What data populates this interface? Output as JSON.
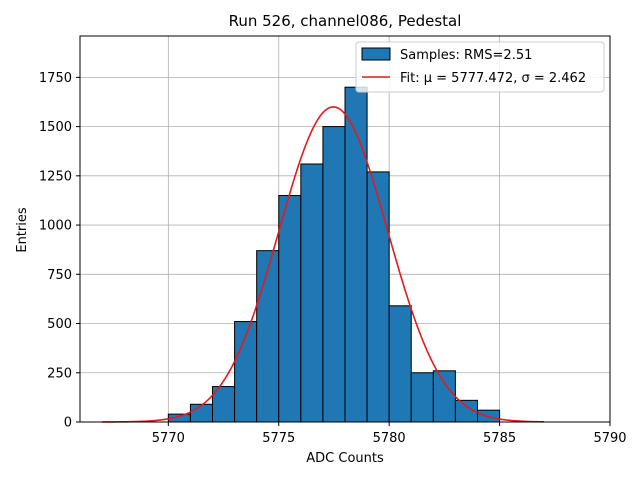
{
  "chart_data": {
    "type": "histogram",
    "title": "Run 526, channel086, Pedestal",
    "xlabel": "ADC Counts",
    "ylabel": "Entries",
    "xlim": [
      5766,
      5790
    ],
    "ylim": [
      0,
      1960
    ],
    "xticks": [
      5770,
      5775,
      5780,
      5785,
      5790
    ],
    "yticks": [
      0,
      250,
      500,
      750,
      1000,
      1250,
      1500,
      1750
    ],
    "grid": true,
    "legend_position": "top-right",
    "bin_edges": [
      5770,
      5771,
      5772,
      5773,
      5774,
      5775,
      5776,
      5777,
      5778,
      5779,
      5780,
      5781,
      5782,
      5783,
      5784,
      5785
    ],
    "counts": [
      40,
      90,
      180,
      510,
      870,
      1150,
      1310,
      1500,
      1700,
      1270,
      590,
      250,
      260,
      110,
      60
    ],
    "hist_color": "#1f77b4",
    "fit": {
      "mu": 5777.472,
      "sigma": 2.462,
      "amplitude": 1600,
      "x_range": [
        5767,
        5787
      ],
      "color": "#e41a1c"
    },
    "legend": [
      {
        "label": "Samples: RMS=2.51",
        "kind": "patch"
      },
      {
        "label": "Fit: μ = 5777.472, σ = 2.462",
        "kind": "line"
      }
    ]
  }
}
